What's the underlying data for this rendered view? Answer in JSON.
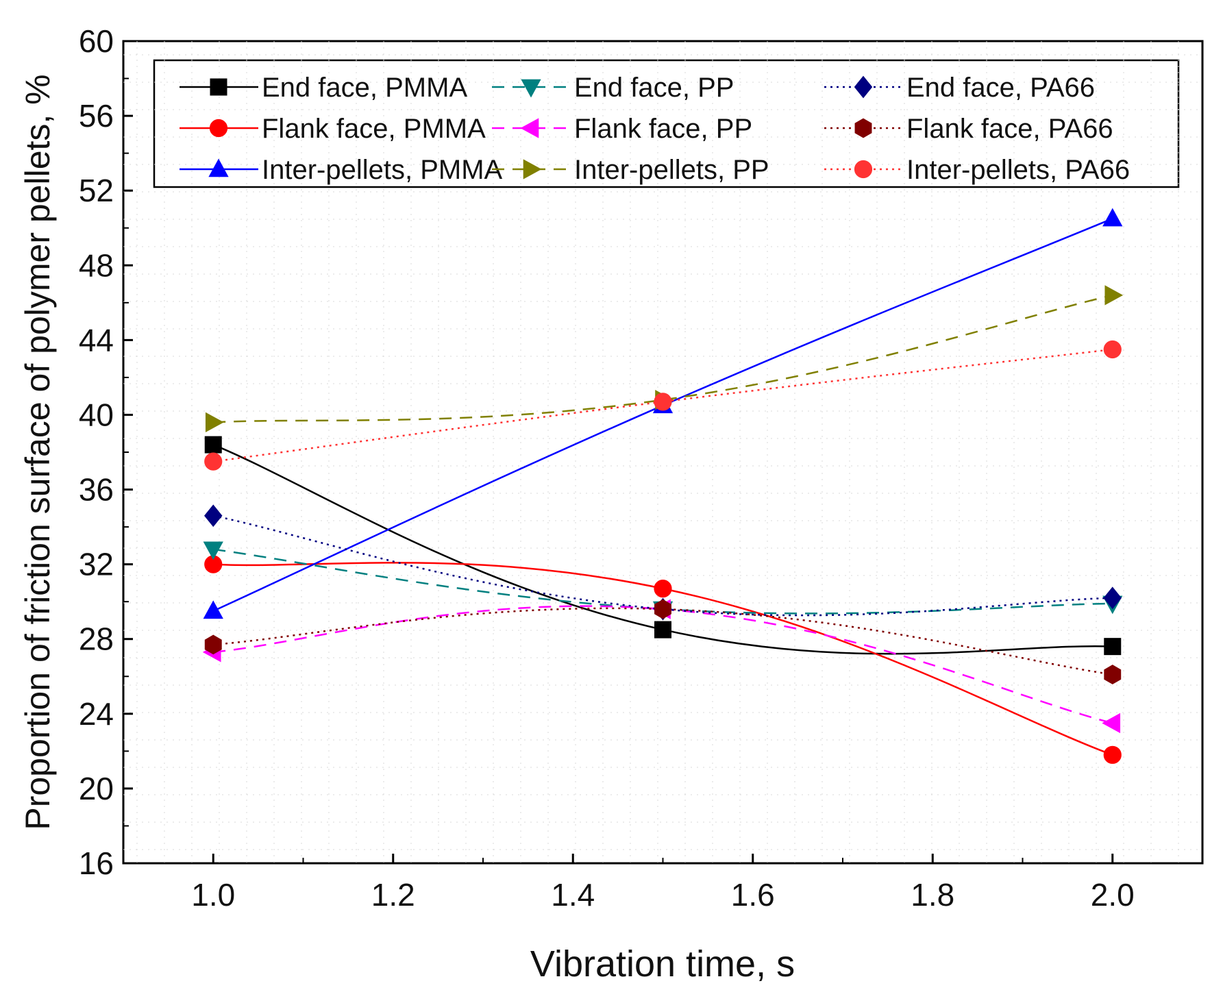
{
  "chart_data": {
    "type": "line",
    "title": "",
    "xlabel": "Vibration time, s",
    "ylabel": "Proportion of friction surface of polymer pellets, %",
    "xlim": [
      0.9,
      2.1
    ],
    "ylim": [
      16,
      60
    ],
    "xticks": [
      "1.0",
      "1.2",
      "1.4",
      "1.6",
      "1.8",
      "2.0"
    ],
    "yticks": [
      "16",
      "20",
      "24",
      "28",
      "32",
      "36",
      "40",
      "44",
      "48",
      "52",
      "56",
      "60"
    ],
    "x": [
      1.0,
      1.5,
      2.0
    ],
    "legend_position": "top",
    "series": [
      {
        "name": "End face, PMMA",
        "values": [
          38.4,
          28.5,
          27.6
        ],
        "color": "#000000",
        "dash": "solid",
        "marker": "square"
      },
      {
        "name": "Flank face, PMMA",
        "values": [
          32.0,
          30.7,
          21.8
        ],
        "color": "#ff0000",
        "dash": "solid",
        "marker": "circle"
      },
      {
        "name": "Inter-pellets, PMMA",
        "values": [
          29.5,
          40.5,
          50.5
        ],
        "color": "#0000ff",
        "dash": "solid",
        "marker": "triangle-up"
      },
      {
        "name": "End face, PP",
        "values": [
          32.8,
          29.6,
          29.9
        ],
        "color": "#008080",
        "dash": "dash",
        "marker": "triangle-down"
      },
      {
        "name": "Flank face, PP",
        "values": [
          27.3,
          29.6,
          23.5
        ],
        "color": "#ff00ff",
        "dash": "dash",
        "marker": "triangle-left"
      },
      {
        "name": "Inter-pellets, PP",
        "values": [
          39.6,
          40.8,
          46.4
        ],
        "color": "#808000",
        "dash": "dash",
        "marker": "triangle-right"
      },
      {
        "name": "End face, PA66",
        "values": [
          34.6,
          29.6,
          30.2
        ],
        "color": "#000080",
        "dash": "dot",
        "marker": "diamond"
      },
      {
        "name": "Flank face, PA66",
        "values": [
          27.7,
          29.6,
          26.1
        ],
        "color": "#800000",
        "dash": "dot",
        "marker": "hexagon"
      },
      {
        "name": "Inter-pellets, PA66",
        "values": [
          37.5,
          40.7,
          43.5
        ],
        "color": "#ff3333",
        "dash": "dot",
        "marker": "circle"
      }
    ]
  }
}
